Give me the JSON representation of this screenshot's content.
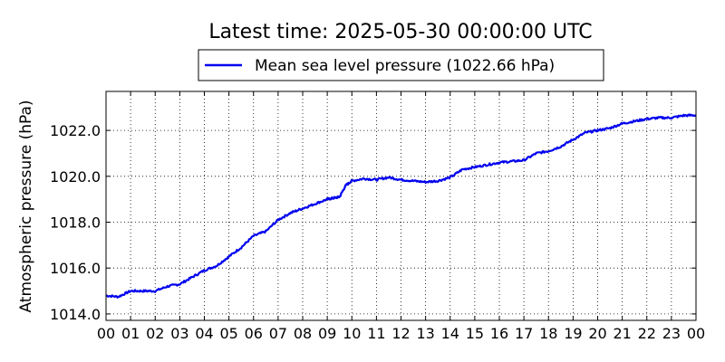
{
  "chart_data": {
    "type": "line",
    "title": "Latest time: 2025-05-30 00:00:00 UTC",
    "xlabel": "",
    "ylabel": "Atmospheric pressure (hPa)",
    "x_tick_labels": [
      "00",
      "01",
      "02",
      "03",
      "04",
      "05",
      "06",
      "07",
      "08",
      "09",
      "10",
      "11",
      "12",
      "13",
      "14",
      "15",
      "16",
      "17",
      "18",
      "19",
      "20",
      "21",
      "22",
      "23",
      "00"
    ],
    "y_ticks": [
      1014.0,
      1016.0,
      1018.0,
      1020.0,
      1022.0
    ],
    "y_tick_labels": [
      "1014.0",
      "1016.0",
      "1018.0",
      "1020.0",
      "1022.0"
    ],
    "xlim": [
      0,
      24
    ],
    "ylim": [
      1013.72,
      1023.7
    ],
    "grid": true,
    "legend_position": "top-center",
    "series": [
      {
        "name": "Mean sea level pressure (1022.66 hPa)",
        "color": "#0000ee",
        "x": [
          0,
          0.5,
          1,
          1.5,
          2,
          2.5,
          3,
          3.5,
          4,
          4.5,
          5,
          5.5,
          6,
          6.5,
          7,
          7.5,
          8,
          8.5,
          9,
          9.25,
          9.5,
          9.75,
          10,
          10.5,
          11,
          11.5,
          12,
          12.5,
          13,
          13.5,
          14,
          14.5,
          15,
          15.5,
          16,
          16.5,
          17,
          17.5,
          18,
          18.5,
          19,
          19.5,
          20,
          20.5,
          21,
          21.5,
          22,
          22.5,
          23,
          23.5,
          24
        ],
        "y": [
          1014.8,
          1014.75,
          1015.0,
          1015.0,
          1015.0,
          1015.2,
          1015.3,
          1015.6,
          1015.9,
          1016.1,
          1016.5,
          1016.9,
          1017.4,
          1017.6,
          1018.1,
          1018.4,
          1018.6,
          1018.8,
          1019.0,
          1019.05,
          1019.1,
          1019.6,
          1019.8,
          1019.9,
          1019.85,
          1019.95,
          1019.85,
          1019.8,
          1019.75,
          1019.8,
          1019.95,
          1020.3,
          1020.4,
          1020.5,
          1020.6,
          1020.65,
          1020.7,
          1021.0,
          1021.1,
          1021.3,
          1021.6,
          1021.9,
          1022.0,
          1022.1,
          1022.3,
          1022.4,
          1022.5,
          1022.55,
          1022.55,
          1022.65,
          1022.66
        ]
      }
    ]
  }
}
